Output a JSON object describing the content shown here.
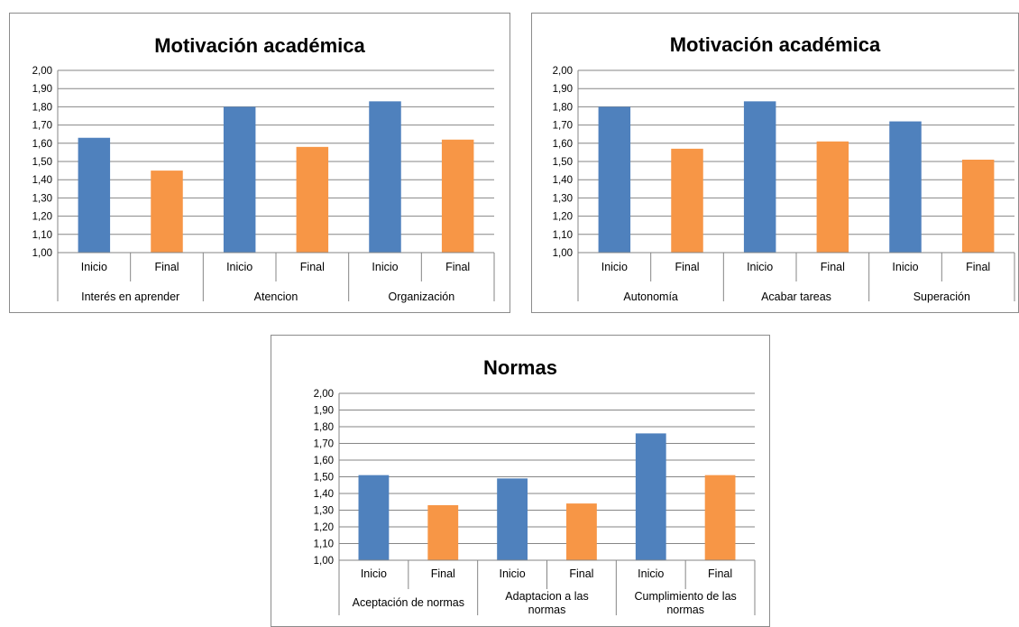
{
  "chart_data": [
    {
      "type": "bar",
      "title": "Motivación académica",
      "xlabel": "",
      "ylabel": "",
      "ylim": [
        1.0,
        2.0
      ],
      "yticks": [
        "1,00",
        "1,10",
        "1,20",
        "1,30",
        "1,40",
        "1,50",
        "1,60",
        "1,70",
        "1,80",
        "1,90",
        "2,00"
      ],
      "grid": true,
      "legend": "none",
      "colors": {
        "Inicio": "#4f81bd",
        "Final": "#f79646"
      },
      "groups": [
        {
          "label": "Interés en aprender",
          "bars": [
            {
              "label": "Inicio",
              "value": 1.63
            },
            {
              "label": "Final",
              "value": 1.45
            }
          ]
        },
        {
          "label": "Atencion",
          "bars": [
            {
              "label": "Inicio",
              "value": 1.8
            },
            {
              "label": "Final",
              "value": 1.58
            }
          ]
        },
        {
          "label": "Organización",
          "bars": [
            {
              "label": "Inicio",
              "value": 1.83
            },
            {
              "label": "Final",
              "value": 1.62
            }
          ]
        }
      ]
    },
    {
      "type": "bar",
      "title": "Motivación académica",
      "xlabel": "",
      "ylabel": "",
      "ylim": [
        1.0,
        2.0
      ],
      "yticks": [
        "1,00",
        "1,10",
        "1,20",
        "1,30",
        "1,40",
        "1,50",
        "1,60",
        "1,70",
        "1,80",
        "1,90",
        "2,00"
      ],
      "grid": true,
      "legend": "none",
      "colors": {
        "Inicio": "#4f81bd",
        "Final": "#f79646"
      },
      "groups": [
        {
          "label": "Autonomía",
          "bars": [
            {
              "label": "Inicio",
              "value": 1.8
            },
            {
              "label": "Final",
              "value": 1.57
            }
          ]
        },
        {
          "label": "Acabar tareas",
          "bars": [
            {
              "label": "Inicio",
              "value": 1.83
            },
            {
              "label": "Final",
              "value": 1.61
            }
          ]
        },
        {
          "label": "Superación",
          "bars": [
            {
              "label": "Inicio",
              "value": 1.72
            },
            {
              "label": "Final",
              "value": 1.51
            }
          ]
        }
      ]
    },
    {
      "type": "bar",
      "title": "Normas",
      "xlabel": "",
      "ylabel": "",
      "ylim": [
        1.0,
        2.0
      ],
      "yticks": [
        "1,00",
        "1,10",
        "1,20",
        "1,30",
        "1,40",
        "1,50",
        "1,60",
        "1,70",
        "1,80",
        "1,90",
        "2,00"
      ],
      "grid": true,
      "legend": "none",
      "colors": {
        "Inicio": "#4f81bd",
        "Final": "#f79646"
      },
      "groups": [
        {
          "label": "Aceptación de normas",
          "bars": [
            {
              "label": "Inicio",
              "value": 1.51
            },
            {
              "label": "Final",
              "value": 1.33
            }
          ]
        },
        {
          "label": "Adaptacion a las normas",
          "bars": [
            {
              "label": "Inicio",
              "value": 1.49
            },
            {
              "label": "Final",
              "value": 1.34
            }
          ]
        },
        {
          "label": "Cumplimiento de las normas",
          "bars": [
            {
              "label": "Inicio",
              "value": 1.76
            },
            {
              "label": "Final",
              "value": 1.51
            }
          ]
        }
      ]
    }
  ]
}
